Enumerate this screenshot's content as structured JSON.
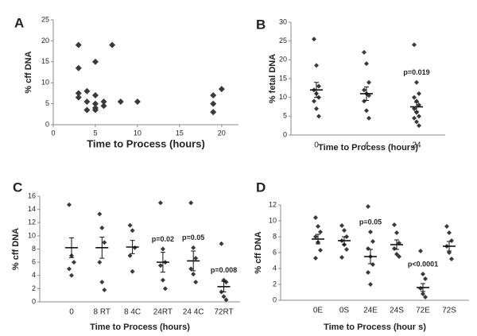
{
  "chart_data": [
    {
      "type": "scatter",
      "label": "A",
      "ylabel": "% cff DNA",
      "xlabel": "Time to Process (hours)",
      "x": [
        3,
        3,
        3,
        3,
        4,
        4,
        4,
        5,
        5,
        5,
        5,
        5,
        6,
        6,
        7,
        8,
        10,
        19,
        19,
        19,
        20
      ],
      "values": [
        19,
        13.5,
        7.5,
        6.5,
        8,
        5.5,
        3.5,
        15,
        7,
        5,
        4,
        3.5,
        5.5,
        4.5,
        19,
        5.5,
        5.5,
        7,
        5,
        3,
        8.5
      ],
      "xlim": [
        0,
        22
      ],
      "xticks": [
        0,
        5,
        10,
        15,
        20
      ],
      "ylim": [
        0,
        25
      ],
      "yticks": [
        0,
        5,
        10,
        15,
        20,
        25
      ],
      "color": "#3a3a3a"
    },
    {
      "type": "strip",
      "label": "B",
      "ylabel": "% fetal DNA",
      "xlabel": "Time to Process (hours)",
      "categories": [
        "0",
        "4",
        "24"
      ],
      "points": [
        [
          25.5,
          18.5,
          13,
          12,
          11,
          10,
          9,
          7,
          5
        ],
        [
          22,
          19,
          14,
          12,
          11,
          10.5,
          9,
          6.5,
          4.5
        ],
        [
          24,
          14,
          11,
          10,
          9,
          8,
          7,
          6,
          5,
          4.5,
          3.5,
          2.5
        ]
      ],
      "means": [
        12,
        11,
        7.5
      ],
      "errors": [
        2,
        1.8,
        1.2
      ],
      "annotations": [
        {
          "text": "p=0.019",
          "category": "24"
        }
      ],
      "ylim": [
        0,
        30
      ],
      "yticks": [
        0,
        5,
        10,
        15,
        20,
        25,
        30
      ],
      "color": "#3a3a3a"
    },
    {
      "type": "strip",
      "label": "C",
      "ylabel": "% cff DNA",
      "xlabel": "Time to Process (hours)",
      "categories": [
        "0",
        "8 RT",
        "8 4C",
        "24RT",
        "24 4C",
        "72RT"
      ],
      "points": [
        [
          14.7,
          7,
          6,
          5,
          4
        ],
        [
          13.3,
          11.2,
          9,
          6,
          3,
          1.8
        ],
        [
          11.6,
          10.8,
          8.2,
          7,
          4.6
        ],
        [
          15,
          8,
          6,
          5.5,
          3.3,
          2
        ],
        [
          15,
          8.2,
          6.6,
          5,
          4.2,
          3
        ],
        [
          8.8,
          3.3,
          3,
          1.5,
          0.8,
          0.3
        ]
      ],
      "means": [
        8.2,
        8.2,
        8.3,
        6,
        6.2,
        2.3
      ],
      "errors": [
        1.5,
        1.6,
        1,
        1.5,
        1.5,
        0.8
      ],
      "annotations": [
        {
          "text": "p=0.02",
          "category": "24RT"
        },
        {
          "text": "p=0.05",
          "category": "24 4C"
        },
        {
          "text": "p=0.008",
          "category": "72RT"
        }
      ],
      "ylim": [
        0,
        16
      ],
      "yticks": [
        0,
        2,
        4,
        6,
        8,
        10,
        12,
        14,
        16
      ],
      "color": "#3a3a3a"
    },
    {
      "type": "strip",
      "label": "D",
      "ylabel": "% cff DNA",
      "xlabel": "Time to Process (hour s)",
      "categories": [
        "0E",
        "0S",
        "24E",
        "24S",
        "72E",
        "72S"
      ],
      "points": [
        [
          10.4,
          9.3,
          8.6,
          8,
          7.3,
          6.3,
          5.3
        ],
        [
          9.4,
          8.8,
          8,
          7.5,
          7,
          6.4,
          5.4
        ],
        [
          11.8,
          8.6,
          7.4,
          6.5,
          5.5,
          4.5,
          3.5,
          2
        ],
        [
          9.5,
          8.5,
          7.2,
          6.5,
          5.8,
          5.5
        ],
        [
          6.2,
          3.3,
          2.7,
          1.5,
          0.8,
          0.4
        ],
        [
          9.3,
          8.5,
          7.5,
          6.8,
          6,
          5.2
        ]
      ],
      "means": [
        7.7,
        7.5,
        5.5,
        7,
        1.6,
        6.8
      ],
      "errors": [
        0.6,
        0.5,
        0.9,
        0.6,
        0.5,
        0.6
      ],
      "annotations": [
        {
          "text": "p=0.05",
          "category": "24E"
        },
        {
          "text": "p<0.0001",
          "category": "72E"
        }
      ],
      "ylim": [
        0,
        12
      ],
      "yticks": [
        0,
        2,
        4,
        6,
        8,
        10,
        12
      ],
      "color": "#3a3a3a"
    }
  ]
}
